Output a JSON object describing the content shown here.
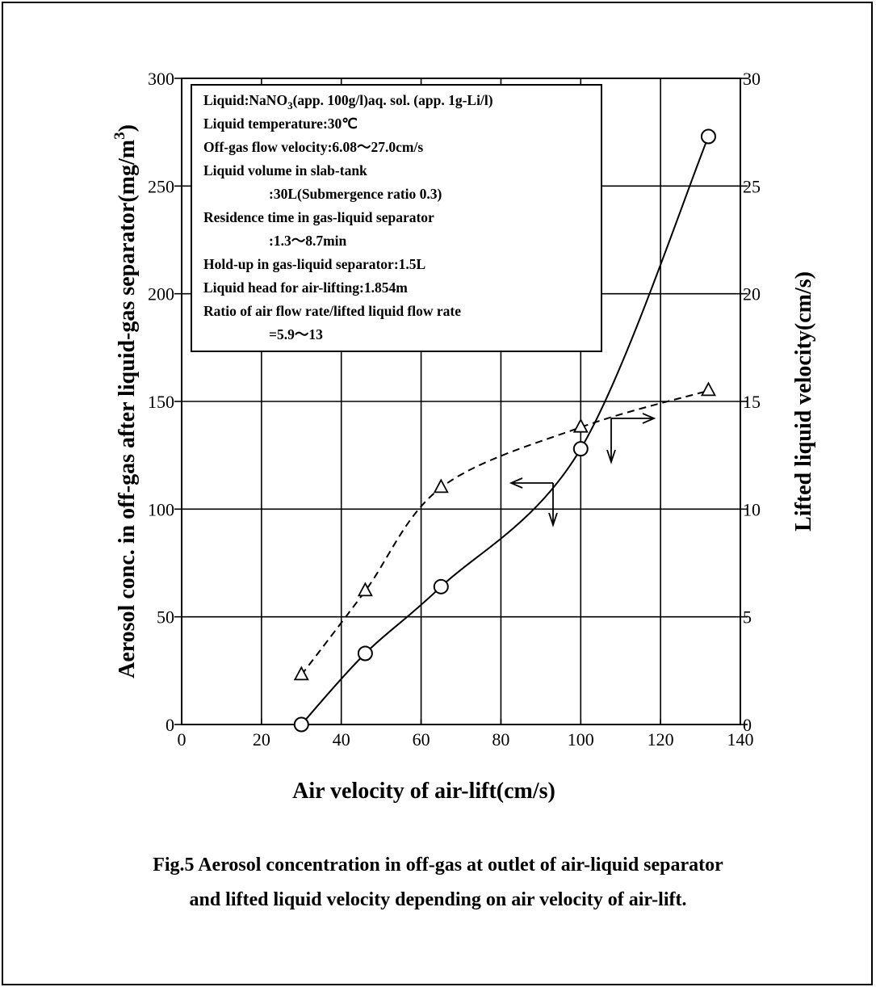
{
  "chart_data": {
    "type": "line",
    "xlabel": "Air velocity of air-lift(cm/s)",
    "ylabel": "Aerosol conc. in off-gas after liquid-gas separator(mg/m",
    "ylabel_sup": "3",
    "ylabel_close": ")",
    "y2label": "Lifted liquid velocity(cm/s)",
    "xlim": [
      0,
      140
    ],
    "ylim": [
      0,
      300
    ],
    "y2lim": [
      0,
      30
    ],
    "x_ticks": [
      "0",
      "20",
      "40",
      "60",
      "80",
      "100",
      "120",
      "140"
    ],
    "y_ticks": [
      "0",
      "50",
      "100",
      "150",
      "200",
      "250",
      "300"
    ],
    "y2_ticks": [
      "0",
      "5",
      "10",
      "15",
      "20",
      "25",
      "30"
    ],
    "grid": true,
    "series": [
      {
        "axis": "left",
        "marker": "circle",
        "line": "solid",
        "points": [
          [
            30,
            0
          ],
          [
            46,
            33
          ],
          [
            65,
            64
          ],
          [
            100,
            128
          ],
          [
            132,
            273
          ]
        ]
      },
      {
        "axis": "right",
        "marker": "triangle",
        "line": "dashed",
        "points": [
          [
            30,
            2.3
          ],
          [
            46,
            6.2
          ],
          [
            65,
            11.0
          ],
          [
            100,
            13.8
          ],
          [
            132,
            15.5
          ]
        ]
      }
    ],
    "conditions": [
      {
        "pre": "Liquid:NaNO",
        "sub": "3",
        "post": "(app. 100g/l)aq. sol. (app. 1g-Li/l)",
        "indent": false
      },
      {
        "text": "Liquid temperature:30℃",
        "indent": false
      },
      {
        "text": "Off-gas flow velocity:6.08〜27.0cm/s",
        "indent": false
      },
      {
        "text": "Liquid volume in slab-tank",
        "indent": false
      },
      {
        "text": ":30L(Submergence ratio 0.3)",
        "indent": true
      },
      {
        "text": "Residence time in gas-liquid separator",
        "indent": false
      },
      {
        "text": ":1.3〜8.7min",
        "indent": true
      },
      {
        "text": "Hold-up in gas-liquid separator:1.5L",
        "indent": false
      },
      {
        "text": "Liquid head for air-lifting:1.854m",
        "indent": false
      },
      {
        "text": "Ratio of air flow rate/lifted liquid flow rate",
        "indent": false
      },
      {
        "text": "=5.9〜13",
        "indent": true
      }
    ]
  },
  "caption": {
    "line1": "Fig.5 Aerosol concentration in off-gas at outlet of air-liquid separator",
    "line2": "and lifted liquid velocity depending on air velocity of air-lift."
  }
}
